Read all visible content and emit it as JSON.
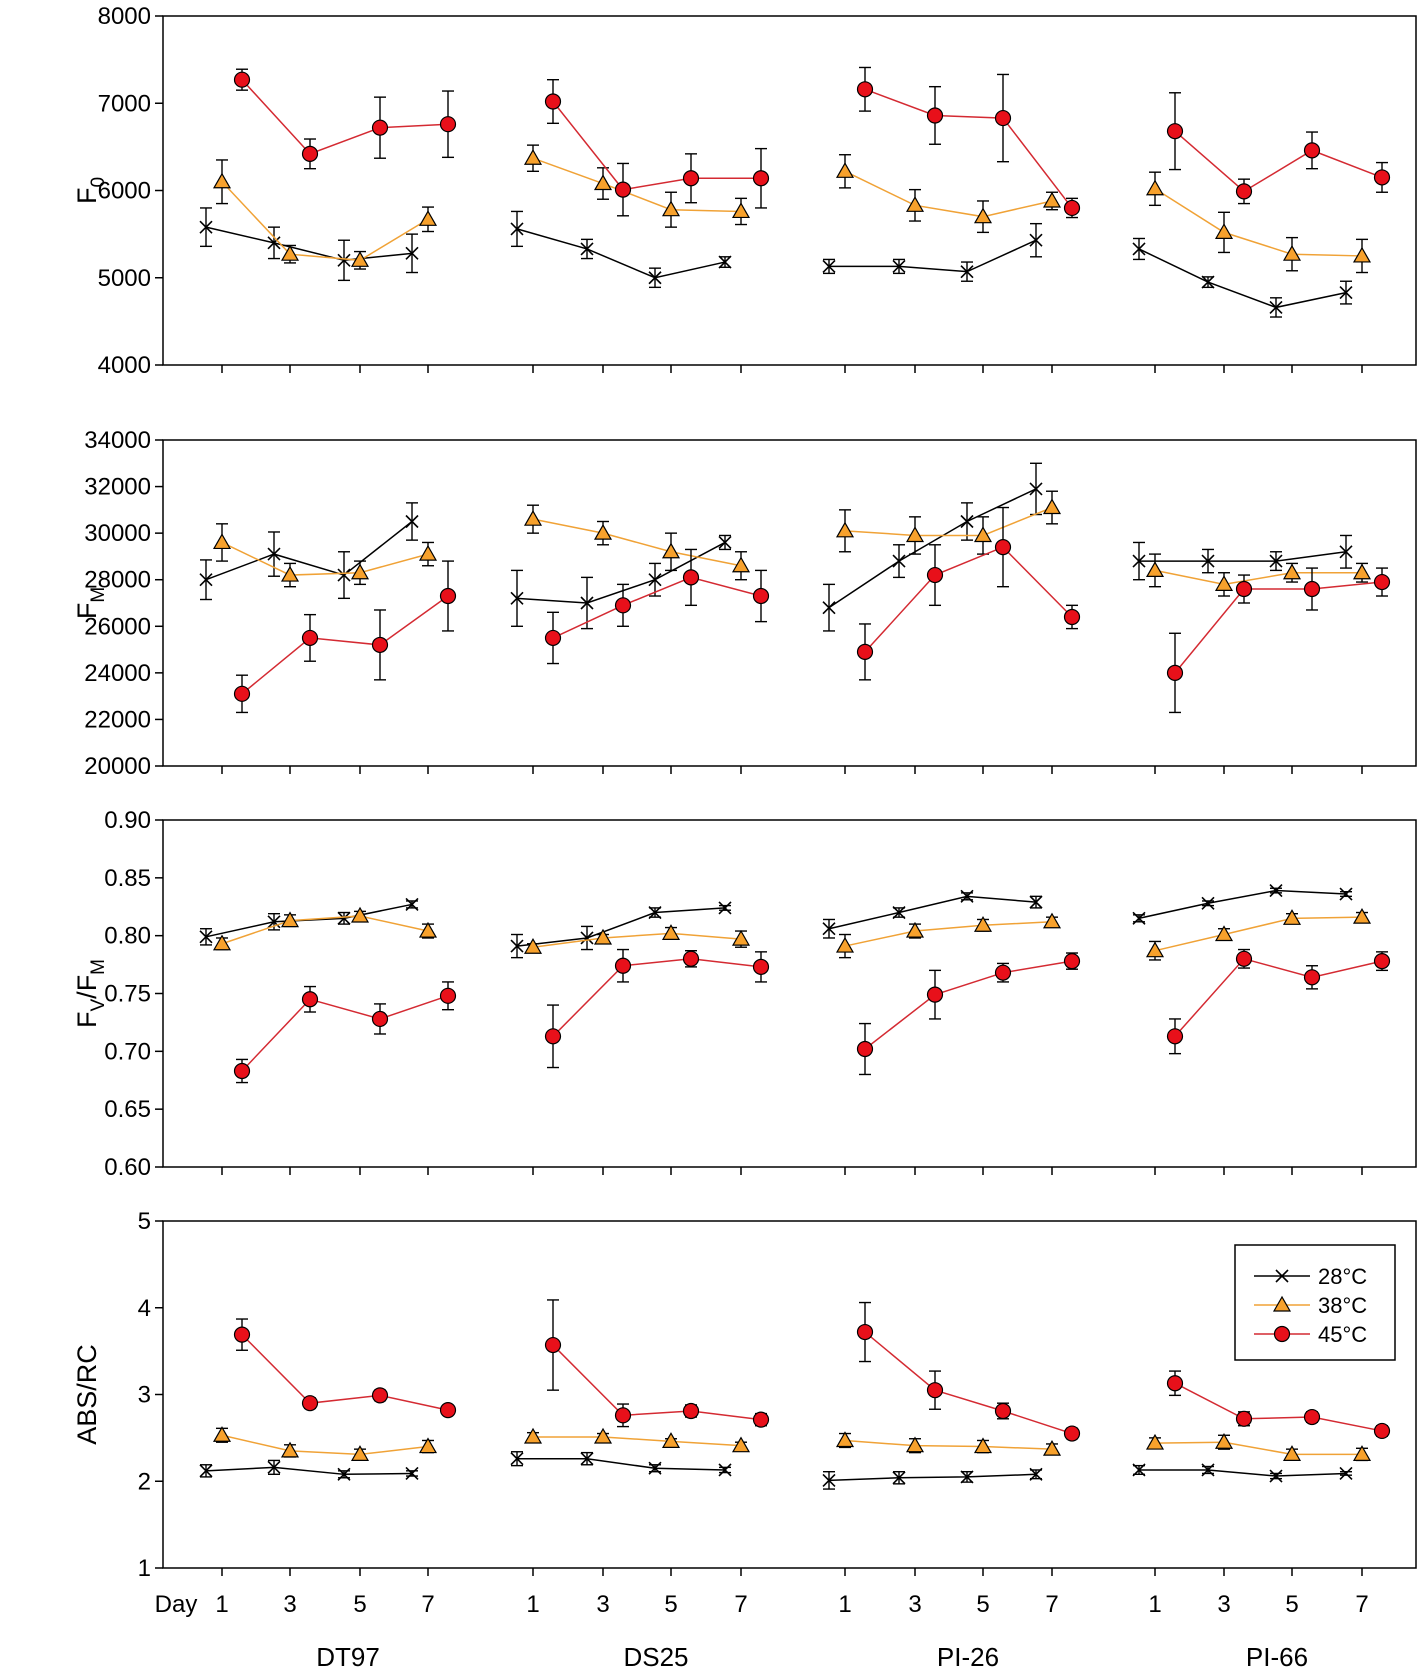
{
  "chart_data": {
    "type": "line",
    "x_ticks": [
      "1",
      "3",
      "5",
      "7"
    ],
    "day_prefix": "Day",
    "genotypes": [
      "DT97",
      "DS25",
      "PI-26",
      "PI-66"
    ],
    "legend": {
      "entries": [
        {
          "name": "28°C",
          "marker": "x",
          "color": "#000000"
        },
        {
          "name": "38°C",
          "marker": "triangle",
          "color": "#f7a12c"
        },
        {
          "name": "45°C",
          "marker": "circle",
          "color": "#e8101a"
        }
      ],
      "line_colors": {
        "28°C": "#000000",
        "38°C": "#f0a236",
        "45°C": "#d42a32"
      },
      "placement": "bottom panel, right"
    },
    "panels": [
      {
        "name": "F0",
        "ylabel_main": "F",
        "ylabel_sub": "0",
        "ylim": [
          4000,
          8000
        ],
        "yticks": [
          4000,
          5000,
          6000,
          7000,
          8000
        ],
        "tick_format": "int",
        "series": {
          "28°C": [
            {
              "values": [
                5580,
                5400,
                5200,
                5280
              ],
              "errors": [
                220,
                180,
                230,
                220
              ]
            },
            {
              "values": [
                5560,
                5330,
                5000,
                5180
              ],
              "errors": [
                200,
                110,
                110,
                60
              ]
            },
            {
              "values": [
                5130,
                5130,
                5070,
                5430
              ],
              "errors": [
                80,
                80,
                110,
                190
              ]
            },
            {
              "values": [
                5330,
                4950,
                4660,
                4830
              ],
              "errors": [
                120,
                60,
                110,
                130
              ]
            }
          ],
          "38°C": [
            {
              "values": [
                6100,
                5270,
                5200,
                5670
              ],
              "errors": [
                250,
                100,
                100,
                140
              ]
            },
            {
              "values": [
                6370,
                6080,
                5780,
                5760
              ],
              "errors": [
                150,
                180,
                200,
                150
              ]
            },
            {
              "values": [
                6220,
                5830,
                5700,
                5880
              ],
              "errors": [
                190,
                180,
                180,
                100
              ]
            },
            {
              "values": [
                6020,
                5520,
                5270,
                5250
              ],
              "errors": [
                190,
                230,
                190,
                190
              ]
            }
          ],
          "45°C": [
            {
              "values": [
                7270,
                6420,
                6720,
                6760
              ],
              "errors": [
                120,
                170,
                350,
                380
              ]
            },
            {
              "values": [
                7020,
                6010,
                6140,
                6140
              ],
              "errors": [
                250,
                300,
                280,
                340
              ]
            },
            {
              "values": [
                7160,
                6860,
                6830,
                5800
              ],
              "errors": [
                250,
                330,
                500,
                110
              ]
            },
            {
              "values": [
                6680,
                5990,
                6460,
                6150
              ],
              "errors": [
                440,
                140,
                210,
                170
              ]
            }
          ]
        }
      },
      {
        "name": "FM",
        "ylabel_main": "F",
        "ylabel_sub": "M",
        "ylim": [
          20000,
          34000
        ],
        "yticks": [
          20000,
          22000,
          24000,
          26000,
          28000,
          30000,
          32000,
          34000
        ],
        "tick_format": "int",
        "series": {
          "28°C": [
            {
              "values": [
                28000,
                29100,
                28200,
                30500
              ],
              "errors": [
                850,
                950,
                1000,
                800
              ]
            },
            {
              "values": [
                27200,
                27000,
                28000,
                29600
              ],
              "errors": [
                1200,
                1100,
                700,
                300
              ]
            },
            {
              "values": [
                26800,
                28800,
                30500,
                31900
              ],
              "errors": [
                1000,
                700,
                800,
                1100
              ]
            },
            {
              "values": [
                28800,
                28800,
                28800,
                29200
              ],
              "errors": [
                800,
                500,
                400,
                700
              ]
            }
          ],
          "38°C": [
            {
              "values": [
                29600,
                28200,
                28300,
                29100
              ],
              "errors": [
                800,
                500,
                500,
                500
              ]
            },
            {
              "values": [
                30600,
                30000,
                29200,
                28600
              ],
              "errors": [
                600,
                500,
                800,
                600
              ]
            },
            {
              "values": [
                30100,
                29900,
                29900,
                31100
              ],
              "errors": [
                900,
                800,
                800,
                700
              ]
            },
            {
              "values": [
                28400,
                27800,
                28300,
                28300
              ],
              "errors": [
                700,
                500,
                400,
                400
              ]
            }
          ],
          "45°C": [
            {
              "values": [
                23100,
                25500,
                25200,
                27300
              ],
              "errors": [
                800,
                1000,
                1500,
                1500
              ]
            },
            {
              "values": [
                25500,
                26900,
                28100,
                27300
              ],
              "errors": [
                1100,
                900,
                1200,
                1100
              ]
            },
            {
              "values": [
                24900,
                28200,
                29400,
                26400
              ],
              "errors": [
                1200,
                1300,
                1700,
                500
              ]
            },
            {
              "values": [
                24000,
                27600,
                27600,
                27900
              ],
              "errors": [
                1700,
                600,
                900,
                600
              ]
            }
          ]
        }
      },
      {
        "name": "FV/FM",
        "ylabel_main": "F",
        "ylabel_sub": "V",
        "ylabel_main2": "/F",
        "ylabel_sub2": "M",
        "ylim": [
          0.6,
          0.9
        ],
        "yticks": [
          0.6,
          0.65,
          0.7,
          0.75,
          0.8,
          0.85,
          0.9
        ],
        "tick_format": "2dp",
        "series": {
          "28°C": [
            {
              "values": [
                0.799,
                0.812,
                0.815,
                0.827
              ],
              "errors": [
                0.007,
                0.007,
                0.005,
                0.003
              ]
            },
            {
              "values": [
                0.791,
                0.798,
                0.82,
                0.824
              ],
              "errors": [
                0.01,
                0.01,
                0.004,
                0.002
              ]
            },
            {
              "values": [
                0.806,
                0.82,
                0.834,
                0.829
              ],
              "errors": [
                0.008,
                0.004,
                0.003,
                0.005
              ]
            },
            {
              "values": [
                0.815,
                0.828,
                0.839,
                0.836
              ],
              "errors": [
                0.003,
                0.002,
                0.002,
                0.002
              ]
            }
          ],
          "38°C": [
            {
              "values": [
                0.793,
                0.813,
                0.817,
                0.804
              ],
              "errors": [
                0.005,
                0.005,
                0.004,
                0.006
              ]
            },
            {
              "values": [
                0.79,
                0.798,
                0.802,
                0.797
              ],
              "errors": [
                0.003,
                0.003,
                0.005,
                0.007
              ]
            },
            {
              "values": [
                0.791,
                0.804,
                0.809,
                0.812
              ],
              "errors": [
                0.01,
                0.006,
                0.005,
                0.004
              ]
            },
            {
              "values": [
                0.787,
                0.801,
                0.815,
                0.816
              ],
              "errors": [
                0.008,
                0.005,
                0.004,
                0.004
              ]
            }
          ],
          "45°C": [
            {
              "values": [
                0.683,
                0.745,
                0.728,
                0.748
              ],
              "errors": [
                0.01,
                0.011,
                0.013,
                0.012
              ]
            },
            {
              "values": [
                0.713,
                0.774,
                0.78,
                0.773
              ],
              "errors": [
                0.027,
                0.014,
                0.007,
                0.013
              ]
            },
            {
              "values": [
                0.702,
                0.749,
                0.768,
                0.778
              ],
              "errors": [
                0.022,
                0.021,
                0.008,
                0.007
              ]
            },
            {
              "values": [
                0.713,
                0.78,
                0.764,
                0.778
              ],
              "errors": [
                0.015,
                0.008,
                0.01,
                0.008
              ]
            }
          ]
        }
      },
      {
        "name": "ABS/RC",
        "ylabel_main": "ABS/RC",
        "ylim": [
          1,
          5
        ],
        "yticks": [
          1,
          2,
          3,
          4,
          5
        ],
        "tick_format": "int",
        "series": {
          "28°C": [
            {
              "values": [
                2.12,
                2.16,
                2.08,
                2.09
              ],
              "errors": [
                0.07,
                0.08,
                0.04,
                0.03
              ]
            },
            {
              "values": [
                2.26,
                2.26,
                2.15,
                2.13
              ],
              "errors": [
                0.08,
                0.07,
                0.04,
                0.03
              ]
            },
            {
              "values": [
                2.01,
                2.04,
                2.05,
                2.08
              ],
              "errors": [
                0.1,
                0.07,
                0.06,
                0.05
              ]
            },
            {
              "values": [
                2.13,
                2.13,
                2.06,
                2.09
              ],
              "errors": [
                0.05,
                0.04,
                0.03,
                0.02
              ]
            }
          ],
          "38°C": [
            {
              "values": [
                2.53,
                2.35,
                2.31,
                2.4
              ],
              "errors": [
                0.08,
                0.07,
                0.06,
                0.07
              ]
            },
            {
              "values": [
                2.51,
                2.51,
                2.46,
                2.41
              ],
              "errors": [
                0.05,
                0.04,
                0.03,
                0.04
              ]
            },
            {
              "values": [
                2.47,
                2.41,
                2.4,
                2.37
              ],
              "errors": [
                0.08,
                0.08,
                0.07,
                0.06
              ]
            },
            {
              "values": [
                2.44,
                2.45,
                2.31,
                2.31
              ],
              "errors": [
                0.06,
                0.08,
                0.06,
                0.07
              ]
            }
          ],
          "45°C": [
            {
              "values": [
                3.69,
                2.9,
                2.99,
                2.82
              ],
              "errors": [
                0.18,
                0.06,
                0.06,
                0.05
              ]
            },
            {
              "values": [
                3.57,
                2.76,
                2.81,
                2.71
              ],
              "errors": [
                0.52,
                0.13,
                0.07,
                0.07
              ]
            },
            {
              "values": [
                3.72,
                3.05,
                2.81,
                2.55
              ],
              "errors": [
                0.34,
                0.22,
                0.09,
                0.06
              ]
            },
            {
              "values": [
                3.13,
                2.72,
                2.74,
                2.58
              ],
              "errors": [
                0.14,
                0.08,
                0.06,
                0.06
              ]
            }
          ]
        }
      }
    ]
  }
}
